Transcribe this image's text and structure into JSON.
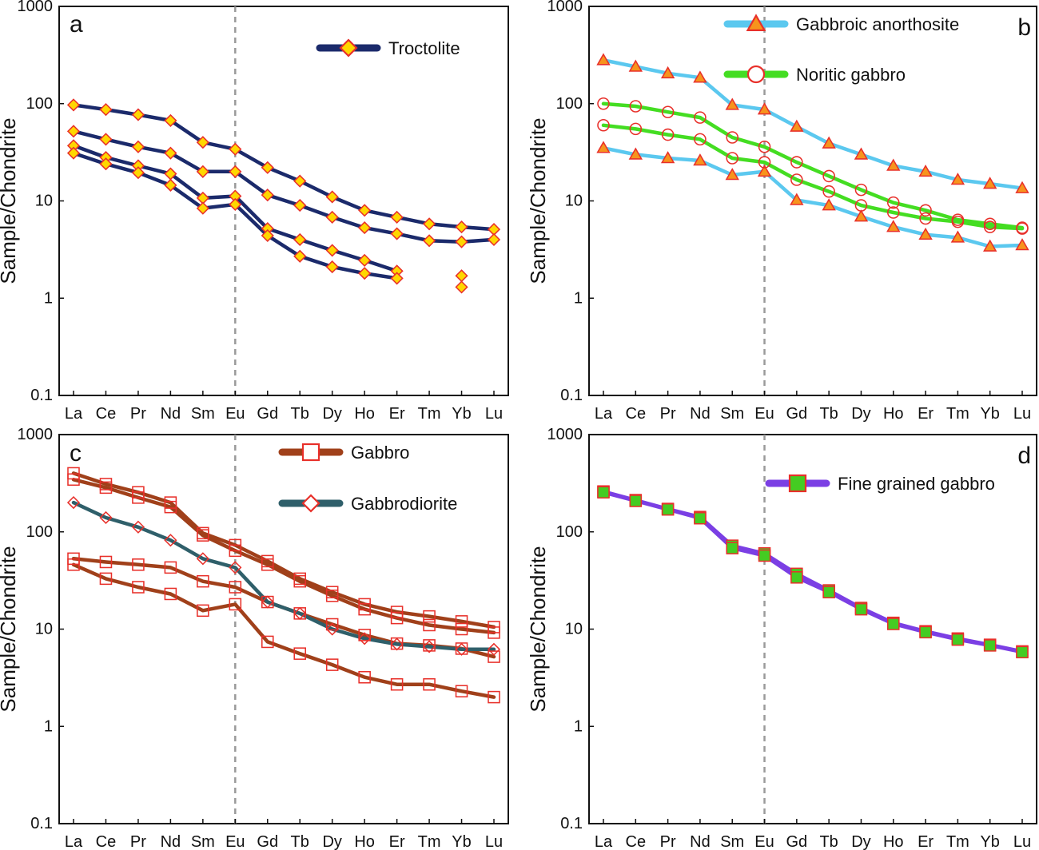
{
  "y_axis_label": "Sample/Chondrite",
  "chart_data": [
    {
      "panel": "a",
      "type": "line",
      "scale": "log",
      "ylim": [
        0.1,
        1000
      ],
      "ytick_labels": [
        "0.1",
        "1",
        "10",
        "100",
        "1000"
      ],
      "categories": [
        "La",
        "Ce",
        "Pr",
        "Nd",
        "Sm",
        "Eu",
        "Gd",
        "Tb",
        "Dy",
        "Ho",
        "Er",
        "Tm",
        "Yb",
        "Lu"
      ],
      "reference_line_at": "Eu",
      "ylabel": "Sample/Chondrite",
      "legend": [
        {
          "label": "Troctolite",
          "line_color": "#1b2a6b",
          "marker": "diamond",
          "marker_fill": "#ffd700",
          "marker_stroke": "#e8302a"
        }
      ],
      "series": [
        {
          "name": "Troctolite",
          "color": "#1b2a6b",
          "marker": "diamond",
          "fill": "#ffd700",
          "stroke": "#e8302a",
          "values": [
            97,
            87,
            77,
            67,
            40,
            34,
            22,
            16,
            11,
            8,
            6.8,
            5.8,
            5.4,
            5.1
          ]
        },
        {
          "name": "Troctolite",
          "color": "#1b2a6b",
          "marker": "diamond",
          "fill": "#ffd700",
          "stroke": "#e8302a",
          "values": [
            52,
            43,
            36,
            31,
            20,
            20,
            11.5,
            9,
            6.8,
            5.3,
            4.6,
            3.9,
            3.8,
            4.0
          ]
        },
        {
          "name": "Troctolite",
          "color": "#1b2a6b",
          "marker": "diamond",
          "fill": "#ffd700",
          "stroke": "#e8302a",
          "values": [
            37,
            28,
            23,
            19,
            10.7,
            11.2,
            5.2,
            4.0,
            3.1,
            2.45,
            1.9,
            null,
            1.7,
            null
          ]
        },
        {
          "name": "Troctolite",
          "color": "#1b2a6b",
          "marker": "diamond",
          "fill": "#ffd700",
          "stroke": "#e8302a",
          "values": [
            31,
            24,
            19.5,
            14.5,
            8.4,
            9.2,
            4.4,
            2.7,
            2.1,
            1.8,
            1.6,
            null,
            1.3,
            null
          ]
        }
      ]
    },
    {
      "panel": "b",
      "type": "line",
      "scale": "log",
      "ylim": [
        0.1,
        1000
      ],
      "ytick_labels": [
        "0.1",
        "1",
        "10",
        "100",
        "1000"
      ],
      "categories": [
        "La",
        "Ce",
        "Pr",
        "Nd",
        "Sm",
        "Eu",
        "Gd",
        "Tb",
        "Dy",
        "Ho",
        "Er",
        "Tm",
        "Yb",
        "Lu"
      ],
      "reference_line_at": "Eu",
      "ylabel": "Sample/Chondrite",
      "legend": [
        {
          "label": "Gabbroic anorthosite",
          "line_color": "#5bc8ef",
          "marker": "triangle",
          "marker_fill": "#f7941d",
          "marker_stroke": "#e8302a"
        },
        {
          "label": "Noritic gabbro",
          "line_color": "#44dd22",
          "marker": "circle",
          "marker_fill": "none",
          "marker_stroke": "#e8302a"
        }
      ],
      "series": [
        {
          "name": "Gabbroic anorthosite",
          "color": "#5bc8ef",
          "marker": "triangle",
          "fill": "#f7941d",
          "stroke": "#e8302a",
          "values": [
            280,
            240,
            205,
            185,
            97,
            87,
            58,
            39,
            30,
            23,
            20,
            16.5,
            15,
            13.5
          ]
        },
        {
          "name": "Gabbroic anorthosite",
          "color": "#5bc8ef",
          "marker": "triangle",
          "fill": "#f7941d",
          "stroke": "#e8302a",
          "values": [
            35,
            30,
            27.5,
            26,
            18.5,
            20,
            10.2,
            9.0,
            6.9,
            5.4,
            4.5,
            4.2,
            3.4,
            3.5
          ]
        },
        {
          "name": "Noritic gabbro",
          "color": "#44dd22",
          "marker": "circle",
          "fill": "none",
          "stroke": "#e8302a",
          "values": [
            100,
            94,
            82,
            72,
            45,
            36,
            25,
            18,
            13,
            9.6,
            8.0,
            6.4,
            5.8,
            5.3
          ]
        },
        {
          "name": "Noritic gabbro",
          "color": "#44dd22",
          "marker": "circle",
          "fill": "none",
          "stroke": "#e8302a",
          "values": [
            60,
            55,
            48,
            43,
            27.5,
            25,
            16.5,
            12.5,
            9.0,
            7.6,
            6.6,
            6.1,
            5.4,
            5.2
          ]
        }
      ]
    },
    {
      "panel": "c",
      "type": "line",
      "scale": "log",
      "ylim": [
        0.1,
        1000
      ],
      "ytick_labels": [
        "0.1",
        "1",
        "10",
        "100",
        "1000"
      ],
      "categories": [
        "La",
        "Ce",
        "Pr",
        "Nd",
        "Sm",
        "Eu",
        "Gd",
        "Tb",
        "Dy",
        "Ho",
        "Er",
        "Tm",
        "Yb",
        "Lu"
      ],
      "reference_line_at": "Eu",
      "ylabel": "Sample/Chondrite",
      "legend": [
        {
          "label": "Gabbro",
          "line_color": "#a0401a",
          "marker": "square",
          "marker_fill": "none",
          "marker_stroke": "#e8302a"
        },
        {
          "label": "Gabbrodiorite",
          "line_color": "#2f5f6a",
          "marker": "diamond",
          "marker_fill": "none",
          "marker_stroke": "#e8302a"
        }
      ],
      "series": [
        {
          "name": "Gabbro",
          "color": "#a0401a",
          "marker": "square",
          "fill": "none",
          "stroke": "#e8302a",
          "values": [
            400,
            310,
            255,
            200,
            97,
            73,
            50,
            33,
            24,
            18,
            15,
            13.5,
            12,
            10.5
          ]
        },
        {
          "name": "Gabbro",
          "color": "#a0401a",
          "marker": "square",
          "fill": "none",
          "stroke": "#e8302a",
          "values": [
            345,
            285,
            225,
            180,
            92,
            64,
            46,
            31,
            22,
            16,
            13,
            11,
            10,
            9.2
          ]
        },
        {
          "name": "Gabbro",
          "color": "#a0401a",
          "marker": "square",
          "fill": "none",
          "stroke": "#e8302a",
          "values": [
            53,
            49,
            46,
            43,
            31,
            27,
            19,
            14.5,
            11.2,
            8.7,
            7.1,
            6.8,
            6.3,
            5.2
          ]
        },
        {
          "name": "Gabbro",
          "color": "#a0401a",
          "marker": "square",
          "fill": "none",
          "stroke": "#e8302a",
          "values": [
            46,
            33,
            27,
            23,
            15.5,
            18,
            7.4,
            5.6,
            4.3,
            3.2,
            2.7,
            2.7,
            2.3,
            2.0
          ]
        },
        {
          "name": "Gabbrodiorite",
          "color": "#2f5f6a",
          "marker": "diamond",
          "fill": "none",
          "stroke": "#e8302a",
          "values": [
            200,
            140,
            112,
            82,
            53,
            43,
            19,
            14.5,
            10,
            8,
            7,
            6.6,
            6.2,
            6.2
          ]
        }
      ]
    },
    {
      "panel": "d",
      "type": "line",
      "scale": "log",
      "ylim": [
        0.1,
        1000
      ],
      "ytick_labels": [
        "0.1",
        "1",
        "10",
        "100",
        "1000"
      ],
      "categories": [
        "La",
        "Ce",
        "Pr",
        "Nd",
        "Sm",
        "Eu",
        "Gd",
        "Tb",
        "Dy",
        "Ho",
        "Er",
        "Tm",
        "Yb",
        "Lu"
      ],
      "reference_line_at": "Eu",
      "ylabel": "Sample/Chondrite",
      "legend": [
        {
          "label": "Fine grained gabbro",
          "line_color": "#7b3fe4",
          "marker": "square",
          "marker_fill": "#44cc22",
          "marker_stroke": "#e8302a"
        }
      ],
      "series": [
        {
          "name": "Fine grained gabbro",
          "color": "#7b3fe4",
          "marker": "square",
          "fill": "#44cc22",
          "stroke": "#e8302a",
          "values": [
            260,
            212,
            172,
            142,
            72,
            60,
            37,
            25,
            16.5,
            11.6,
            9.5,
            8.0,
            6.9,
            5.9
          ]
        },
        {
          "name": "Fine grained gabbro",
          "color": "#7b3fe4",
          "marker": "square",
          "fill": "#44cc22",
          "stroke": "#e8302a",
          "values": [
            255,
            208,
            170,
            138,
            68,
            57,
            34,
            24,
            16,
            11.3,
            9.3,
            7.8,
            6.8,
            5.8
          ]
        }
      ]
    }
  ]
}
